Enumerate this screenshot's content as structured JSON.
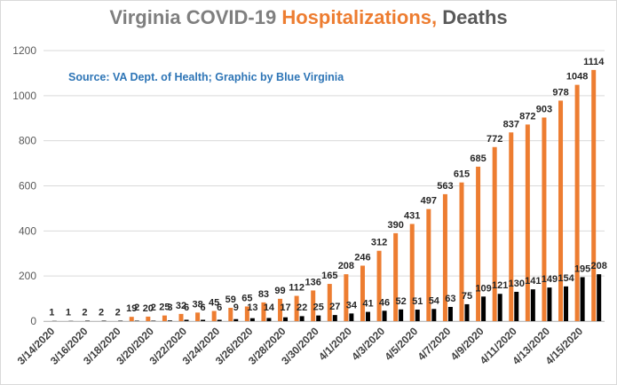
{
  "title": {
    "part1": "Virginia COVID-19 ",
    "part2": "Hospitalizations,",
    "part3": " Deaths"
  },
  "source_note": "Source: VA Dept. of Health; Graphic by Blue Virginia",
  "colors": {
    "hospitalizations": "#ed7d31",
    "deaths": "#000000",
    "gridline": "#d9d9d9"
  },
  "chart_data": {
    "type": "bar",
    "title": "Virginia COVID-19 Hospitalizations, Deaths",
    "xlabel": "",
    "ylabel": "",
    "ylim": [
      0,
      1200
    ],
    "yticks": [
      0,
      200,
      400,
      600,
      800,
      1000,
      1200
    ],
    "grid": true,
    "categories": [
      "3/14/2020",
      "3/15/2020",
      "3/16/2020",
      "3/17/2020",
      "3/18/2020",
      "3/19/2020",
      "3/20/2020",
      "3/21/2020",
      "3/22/2020",
      "3/23/2020",
      "3/24/2020",
      "3/25/2020",
      "3/26/2020",
      "3/27/2020",
      "3/28/2020",
      "3/29/2020",
      "3/30/2020",
      "3/31/2020",
      "4/1/2020",
      "4/2/2020",
      "4/3/2020",
      "4/4/2020",
      "4/5/2020",
      "4/6/2020",
      "4/7/2020",
      "4/8/2020",
      "4/9/2020",
      "4/10/2020",
      "4/11/2020",
      "4/12/2020",
      "4/13/2020",
      "4/14/2020",
      "4/15/2020",
      "4/16/2020"
    ],
    "tick_labels": [
      "3/14/2020",
      "3/16/2020",
      "3/18/2020",
      "3/20/2020",
      "3/22/2020",
      "3/24/2020",
      "3/26/2020",
      "3/28/2020",
      "3/30/2020",
      "4/1/2020",
      "4/3/2020",
      "4/5/2020",
      "4/7/2020",
      "4/9/2020",
      "4/11/2020",
      "4/13/2020",
      "4/15/2020"
    ],
    "series": [
      {
        "name": "Hospitalizations",
        "values": [
          null,
          null,
          null,
          null,
          null,
          19,
          20,
          25,
          32,
          38,
          45,
          59,
          65,
          83,
          99,
          112,
          136,
          165,
          208,
          246,
          312,
          390,
          431,
          497,
          563,
          615,
          685,
          772,
          837,
          872,
          903,
          978,
          1048,
          1114
        ]
      },
      {
        "name": "Deaths",
        "values": [
          1,
          1,
          2,
          2,
          2,
          2,
          2,
          3,
          6,
          6,
          6,
          9,
          13,
          14,
          17,
          22,
          25,
          27,
          34,
          41,
          46,
          52,
          51,
          54,
          63,
          75,
          109,
          121,
          130,
          141,
          149,
          154,
          195,
          208
        ]
      }
    ]
  }
}
